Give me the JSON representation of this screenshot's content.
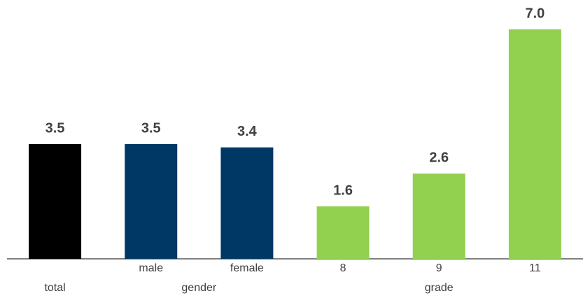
{
  "chart_data": {
    "type": "bar",
    "categories": [
      null,
      "male",
      "female",
      "8",
      "9",
      "11"
    ],
    "groups": [
      "total",
      "gender",
      "gender",
      "grade",
      "grade",
      "grade"
    ],
    "values": [
      3.5,
      3.5,
      3.4,
      1.6,
      2.6,
      7.0
    ],
    "value_labels": [
      "3.5",
      "3.5",
      "3.4",
      "1.6",
      "2.6",
      "7.0"
    ],
    "colors": [
      "#000000",
      "#003865",
      "#003865",
      "#92d050",
      "#92d050",
      "#92d050"
    ]
  }
}
